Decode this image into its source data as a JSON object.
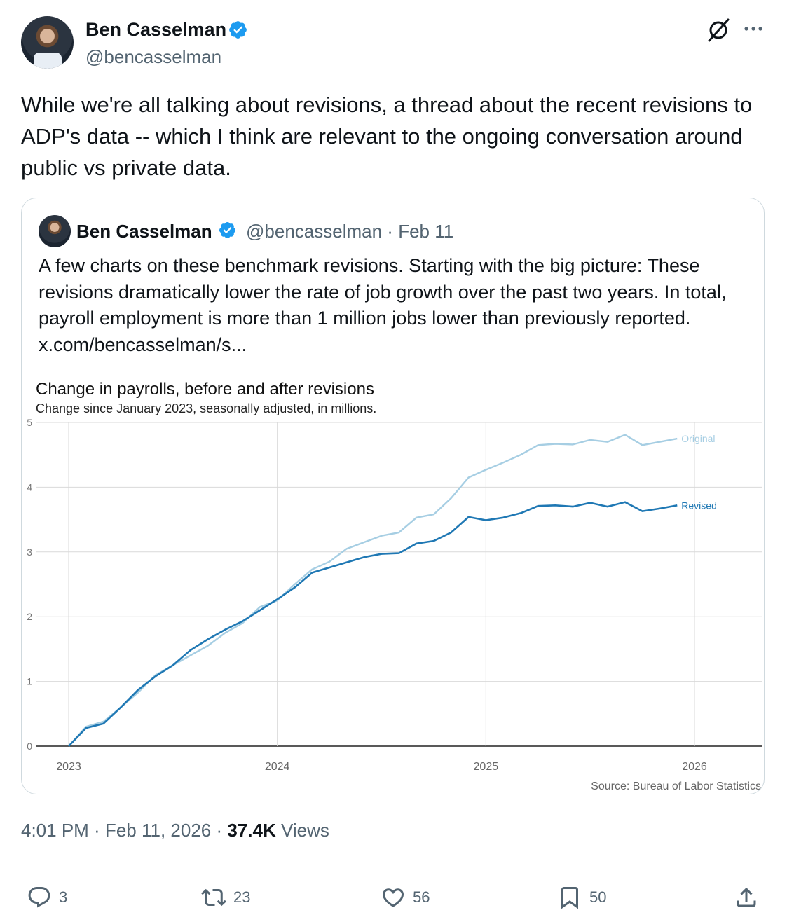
{
  "tweet": {
    "author_name": "Ben Casselman",
    "author_handle": "@bencasselman",
    "text": "While we're all talking about revisions, a thread about the recent revisions to ADP's data -- which I think are relevant to the ongoing conversation around public vs private data.",
    "time": "4:01 PM · Feb 11, 2026 · ",
    "views_count": "37.4K",
    "views_label": " Views"
  },
  "quote": {
    "author_name": "Ben Casselman",
    "author_handle": "@bencasselman",
    "date": "Feb 11",
    "separator": "·",
    "text": "A few charts on these benchmark revisions. Starting with the big picture: These revisions dramatically lower the rate of job growth over the past two years. In total, payroll employment is more than 1 million jobs lower than previously reported.  x.com/bencasselman/s..."
  },
  "actions": {
    "replies": "3",
    "reposts": "23",
    "likes": "56",
    "bookmarks": "50"
  },
  "icons": {
    "verified": "verified-badge-icon",
    "grok": "grok-icon",
    "more": "more-icon",
    "reply": "reply-icon",
    "repost": "repost-icon",
    "like": "heart-icon",
    "bookmark": "bookmark-icon",
    "share": "share-icon"
  },
  "colors": {
    "verified": "#1d9bf0",
    "original": "#a6cee3",
    "revised": "#1f78b4"
  },
  "chart_data": {
    "type": "line",
    "title": "Change in payrolls, before and after revisions",
    "subtitle": "Change since January 2023, seasonally adjusted, in millions.",
    "source": "Source: Bureau of Labor Statistics",
    "x_ticks": [
      "2023",
      "2024",
      "2025",
      "2026"
    ],
    "y_ticks": [
      "0",
      "1",
      "2",
      "3",
      "4",
      "5"
    ],
    "ylim": [
      0,
      5
    ],
    "xlim": [
      2023,
      2026
    ],
    "x": [
      2023.0,
      2023.083,
      2023.167,
      2023.25,
      2023.333,
      2023.417,
      2023.5,
      2023.583,
      2023.667,
      2023.75,
      2023.833,
      2023.917,
      2024.0,
      2024.083,
      2024.167,
      2024.25,
      2024.333,
      2024.417,
      2024.5,
      2024.583,
      2024.667,
      2024.75,
      2024.833,
      2024.917,
      2025.0,
      2025.083,
      2025.167,
      2025.25,
      2025.333,
      2025.417,
      2025.5,
      2025.583,
      2025.667,
      2025.75,
      2025.833,
      2025.917
    ],
    "series": [
      {
        "name": "Original",
        "color": "#a6cee3",
        "values": [
          0.0,
          0.3,
          0.38,
          0.6,
          0.83,
          1.1,
          1.25,
          1.4,
          1.55,
          1.75,
          1.9,
          2.15,
          2.25,
          2.5,
          2.73,
          2.85,
          3.05,
          3.15,
          3.25,
          3.3,
          3.53,
          3.58,
          3.83,
          4.15,
          4.27,
          4.38,
          4.5,
          4.65,
          4.67,
          4.66,
          4.73,
          4.7,
          4.81,
          4.65,
          4.7,
          4.75
        ]
      },
      {
        "name": "Revised",
        "color": "#1f78b4",
        "values": [
          0.0,
          0.28,
          0.35,
          0.6,
          0.87,
          1.08,
          1.25,
          1.48,
          1.65,
          1.8,
          1.93,
          2.1,
          2.27,
          2.45,
          2.68,
          2.76,
          2.84,
          2.92,
          2.97,
          2.98,
          3.13,
          3.17,
          3.3,
          3.54,
          3.49,
          3.53,
          3.6,
          3.71,
          3.72,
          3.7,
          3.76,
          3.7,
          3.77,
          3.63,
          3.67,
          3.72
        ]
      }
    ]
  }
}
